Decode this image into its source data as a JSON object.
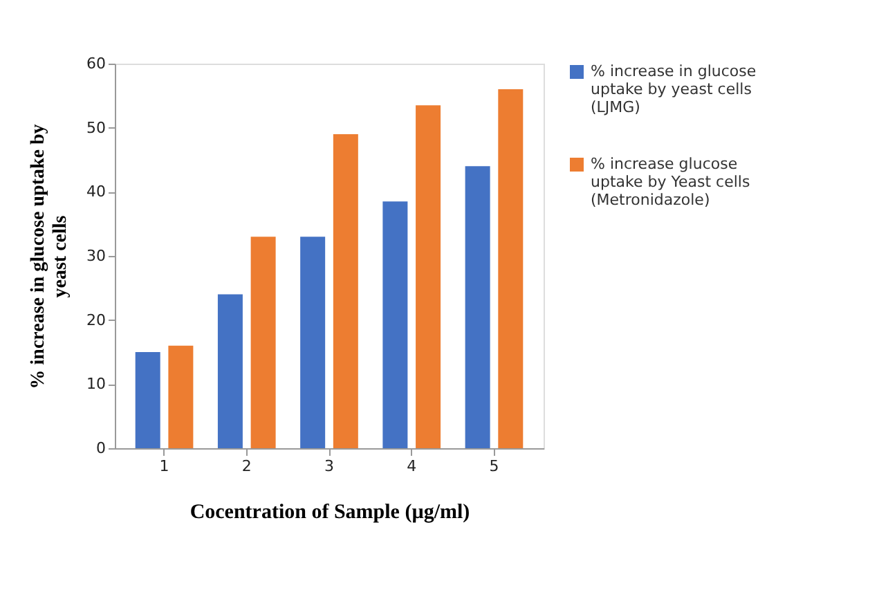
{
  "chart_data": {
    "type": "bar",
    "xlabel": "Cocentration of Sample (µg/ml)",
    "ylabel": "% increase in glucose uptake by yeast cells",
    "categories": [
      "1",
      "2",
      "3",
      "4",
      "5"
    ],
    "series": [
      {
        "name": "% increase in glucose uptake by yeast cells (LJMG)",
        "color": "#4472c4",
        "values": [
          15,
          24,
          33,
          38.5,
          44
        ]
      },
      {
        "name": "% increase glucose uptake by Yeast cells (Metronidazole)",
        "color": "#ed7d31",
        "values": [
          16,
          33,
          49,
          53.5,
          56
        ]
      }
    ],
    "ylim": [
      0,
      60
    ],
    "yticks": [
      0,
      10,
      20,
      30,
      40,
      50,
      60
    ],
    "grid": false,
    "legend": "right"
  }
}
